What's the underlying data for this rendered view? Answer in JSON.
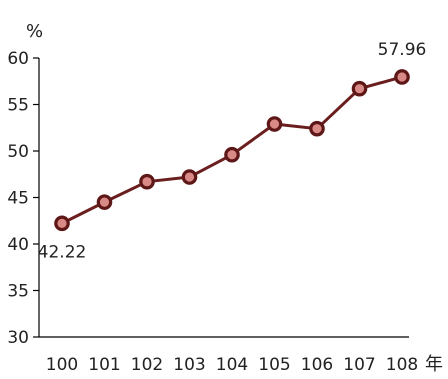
{
  "chart_data": {
    "type": "line",
    "title": "",
    "ylabel": "%",
    "xlabel": "年",
    "categories": [
      "100",
      "101",
      "102",
      "103",
      "104",
      "105",
      "106",
      "107",
      "108"
    ],
    "series": [
      {
        "values": [
          42.22,
          44.5,
          46.7,
          47.2,
          49.6,
          52.9,
          52.4,
          56.7,
          57.96
        ]
      }
    ],
    "ylim": [
      30,
      60
    ],
    "yticks": [
      "30",
      "35",
      "40",
      "45",
      "50",
      "55",
      "60"
    ],
    "data_labels": [
      {
        "index": 0,
        "text": "42.22",
        "position": "below"
      },
      {
        "index": 8,
        "text": "57.96",
        "position": "above"
      }
    ],
    "grid": false,
    "legend": "none",
    "colors": {
      "line": "#6b1e1e",
      "marker_fill": "#d98a86",
      "marker_edge": "#5e1717",
      "axis": "#000000",
      "text": "#222222"
    }
  }
}
